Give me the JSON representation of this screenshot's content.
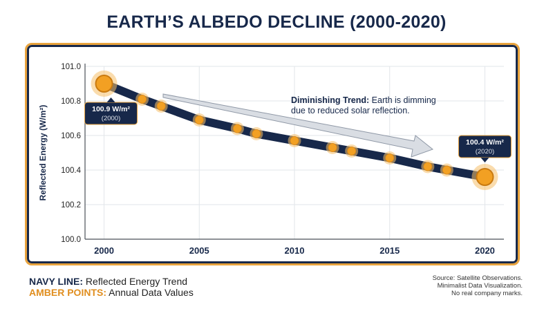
{
  "title": "EARTH’S ALBEDO DECLINE (2000-2020)",
  "chart_data": {
    "type": "line",
    "ylabel": "Reflected Energy (W/m²)",
    "xlabel": "",
    "xlim": [
      1999,
      2021
    ],
    "ylim": [
      100.0,
      101.0
    ],
    "x_ticks": [
      2000,
      2005,
      2010,
      2015,
      2020
    ],
    "y_ticks": [
      100.0,
      100.2,
      100.4,
      100.6,
      100.8,
      101.0
    ],
    "y_tick_labels": [
      "100.0",
      "100.2",
      "100.4",
      "100.6",
      "100.8",
      "101.0"
    ],
    "grid": true,
    "series": [
      {
        "x": [
          2000,
          2002,
          2003,
          2005,
          2007,
          2008,
          2010,
          2012,
          2013,
          2015,
          2017,
          2018,
          2020
        ],
        "y": [
          100.9,
          100.81,
          100.77,
          100.69,
          100.64,
          100.61,
          100.57,
          100.53,
          100.51,
          100.47,
          100.42,
          100.4,
          100.36
        ],
        "line_color": "#17284a",
        "point_color": "#f2a023"
      }
    ],
    "callouts": [
      {
        "value_label": "100.9 W/m²",
        "year_label": "(2000)"
      },
      {
        "value_label": "100.4 W/m²",
        "year_label": "(2020)"
      }
    ],
    "annotation": {
      "bold": "Diminishing Trend:",
      "line1_rest": " Earth is dimming",
      "line2": "due to reduced solar reflection."
    }
  },
  "legend": {
    "line_key": "NAVY LINE:",
    "line_desc": " Reflected Energy Trend",
    "points_key": "AMBER POINTS:",
    "points_desc": " Annual Data Values"
  },
  "source_notes": [
    "Source: Satellite Observations.",
    "Minimalist Data Visualization.",
    "No real company marks."
  ]
}
